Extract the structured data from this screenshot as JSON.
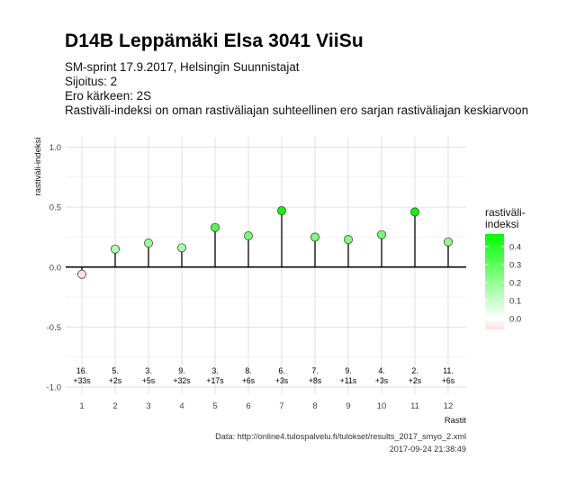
{
  "header": {
    "title": "D14B Leppämäki Elsa 3041 ViiSu",
    "subtitle_lines": [
      "SM-sprint 17.9.2017, Helsingin Suunnistajat",
      "Sijoitus: 2",
      "Ero kärkeen: 2S",
      "Rastiväli-indeksi on oman rastiväliajan suhteellinen ero sarjan rastiväliajan keskiarvoon"
    ]
  },
  "footer": {
    "source": "Data: http://online4.tulospalvelu.fi/tulokset/results_2017_smyo_2.xml",
    "timestamp": "2017-09-24 21:38:49"
  },
  "chart_data": {
    "type": "lollipop",
    "x": [
      1,
      2,
      3,
      4,
      5,
      6,
      7,
      8,
      9,
      10,
      11,
      12
    ],
    "values": [
      -0.06,
      0.15,
      0.2,
      0.16,
      0.33,
      0.26,
      0.47,
      0.25,
      0.23,
      0.27,
      0.46,
      0.21
    ],
    "rank_labels": [
      "16.",
      "5.",
      "3.",
      "9.",
      "3.",
      "8.",
      "6.",
      "7.",
      "9.",
      "4.",
      "2.",
      "11."
    ],
    "diff_labels": [
      "+33s",
      "+2s",
      "+5s",
      "+32s",
      "+17s",
      "+6s",
      "+3s",
      "+8s",
      "+11s",
      "+3s",
      "+2s",
      "+6s"
    ],
    "xlabel": "Rastit",
    "ylabel": "rastiväli-indeksi",
    "ylim": [
      -1.0,
      1.0
    ],
    "yticks": [
      1.0,
      0.5,
      0.0,
      -0.5,
      -1.0
    ],
    "ytick_labels": [
      "1.0",
      "0.5",
      "0.0",
      "-0.5",
      "-1.0"
    ],
    "xticks": [
      1,
      2,
      3,
      4,
      5,
      6,
      7,
      8,
      9,
      10,
      11,
      12
    ],
    "xtick_labels": [
      "1",
      "2",
      "3",
      "4",
      "5",
      "6",
      "7",
      "8",
      "9",
      "10",
      "11",
      "12"
    ],
    "grid": true,
    "legend": {
      "title_lines": [
        "rastiväli-",
        "indeksi"
      ],
      "position": "right",
      "ticks": [
        0.4,
        0.3,
        0.2,
        0.1,
        0.0
      ],
      "tick_labels": [
        "0.4",
        "0.3",
        "0.2",
        "0.1",
        "0.0"
      ],
      "range": [
        -0.06,
        0.47
      ],
      "color_low": "#fde0dd",
      "color_mid": "#ffffff",
      "color_high": "#00ff00"
    }
  }
}
